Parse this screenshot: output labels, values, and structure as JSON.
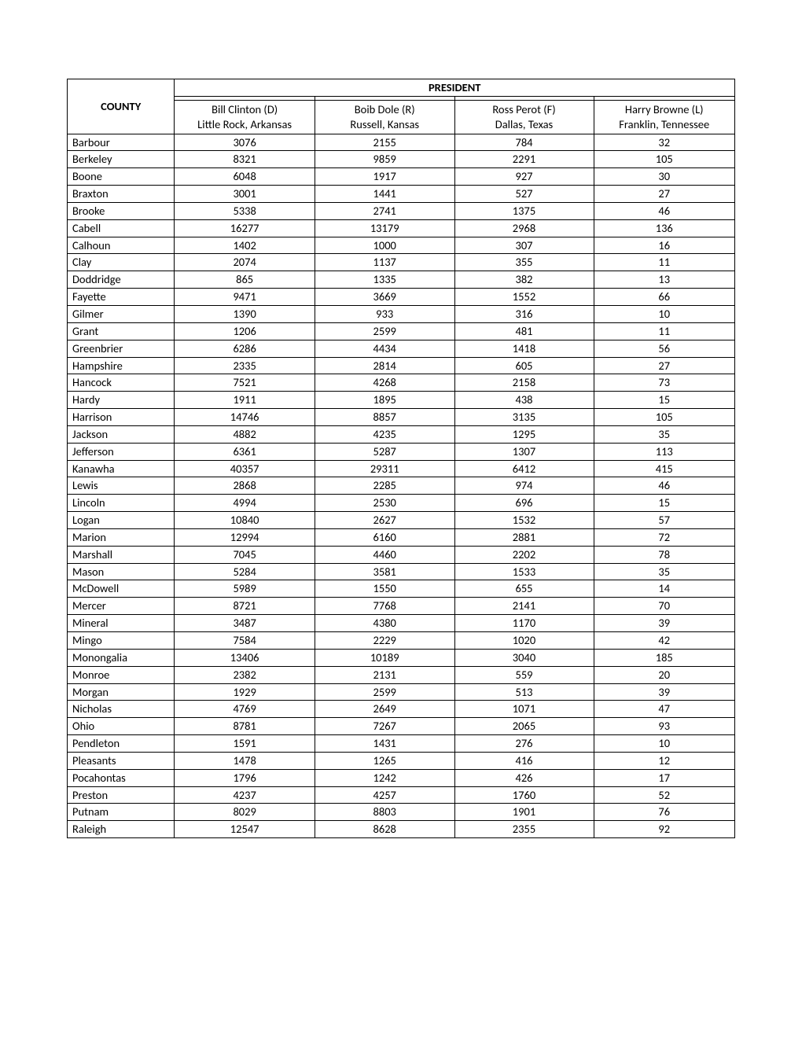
{
  "header": {
    "county_label": "COUNTY",
    "president_label": "PRESIDENT",
    "candidates": [
      {
        "name": "Bill Clinton (D)",
        "origin": "Little Rock, Arkansas"
      },
      {
        "name": "Boib Dole (R)",
        "origin": "Russell, Kansas"
      },
      {
        "name": "Ross Perot (F)",
        "origin": "Dallas, Texas"
      },
      {
        "name": "Harry Browne (L)",
        "origin": "Franklin, Tennessee"
      }
    ]
  },
  "rows": [
    {
      "county": "Barbour",
      "v": [
        "3076",
        "2155",
        "784",
        "32"
      ]
    },
    {
      "county": "Berkeley",
      "v": [
        "8321",
        "9859",
        "2291",
        "105"
      ]
    },
    {
      "county": "Boone",
      "v": [
        "6048",
        "1917",
        "927",
        "30"
      ]
    },
    {
      "county": "Braxton",
      "v": [
        "3001",
        "1441",
        "527",
        "27"
      ]
    },
    {
      "county": "Brooke",
      "v": [
        "5338",
        "2741",
        "1375",
        "46"
      ]
    },
    {
      "county": "Cabell",
      "v": [
        "16277",
        "13179",
        "2968",
        "136"
      ]
    },
    {
      "county": "Calhoun",
      "v": [
        "1402",
        "1000",
        "307",
        "16"
      ]
    },
    {
      "county": "Clay",
      "v": [
        "2074",
        "1137",
        "355",
        "11"
      ]
    },
    {
      "county": "Doddridge",
      "v": [
        "865",
        "1335",
        "382",
        "13"
      ]
    },
    {
      "county": "Fayette",
      "v": [
        "9471",
        "3669",
        "1552",
        "66"
      ]
    },
    {
      "county": "Gilmer",
      "v": [
        "1390",
        "933",
        "316",
        "10"
      ]
    },
    {
      "county": "Grant",
      "v": [
        "1206",
        "2599",
        "481",
        "11"
      ]
    },
    {
      "county": "Greenbrier",
      "v": [
        "6286",
        "4434",
        "1418",
        "56"
      ]
    },
    {
      "county": "Hampshire",
      "v": [
        "2335",
        "2814",
        "605",
        "27"
      ]
    },
    {
      "county": "Hancock",
      "v": [
        "7521",
        "4268",
        "2158",
        "73"
      ]
    },
    {
      "county": "Hardy",
      "v": [
        "1911",
        "1895",
        "438",
        "15"
      ]
    },
    {
      "county": "Harrison",
      "v": [
        "14746",
        "8857",
        "3135",
        "105"
      ]
    },
    {
      "county": "Jackson",
      "v": [
        "4882",
        "4235",
        "1295",
        "35"
      ]
    },
    {
      "county": "Jefferson",
      "v": [
        "6361",
        "5287",
        "1307",
        "113"
      ]
    },
    {
      "county": "Kanawha",
      "v": [
        "40357",
        "29311",
        "6412",
        "415"
      ]
    },
    {
      "county": "Lewis",
      "v": [
        "2868",
        "2285",
        "974",
        "46"
      ]
    },
    {
      "county": "Lincoln",
      "v": [
        "4994",
        "2530",
        "696",
        "15"
      ]
    },
    {
      "county": "Logan",
      "v": [
        "10840",
        "2627",
        "1532",
        "57"
      ]
    },
    {
      "county": "Marion",
      "v": [
        "12994",
        "6160",
        "2881",
        "72"
      ]
    },
    {
      "county": "Marshall",
      "v": [
        "7045",
        "4460",
        "2202",
        "78"
      ]
    },
    {
      "county": "Mason",
      "v": [
        "5284",
        "3581",
        "1533",
        "35"
      ]
    },
    {
      "county": "McDowell",
      "v": [
        "5989",
        "1550",
        "655",
        "14"
      ]
    },
    {
      "county": "Mercer",
      "v": [
        "8721",
        "7768",
        "2141",
        "70"
      ]
    },
    {
      "county": "Mineral",
      "v": [
        "3487",
        "4380",
        "1170",
        "39"
      ]
    },
    {
      "county": "Mingo",
      "v": [
        "7584",
        "2229",
        "1020",
        "42"
      ]
    },
    {
      "county": "Monongalia",
      "v": [
        "13406",
        "10189",
        "3040",
        "185"
      ]
    },
    {
      "county": "Monroe",
      "v": [
        "2382",
        "2131",
        "559",
        "20"
      ]
    },
    {
      "county": "Morgan",
      "v": [
        "1929",
        "2599",
        "513",
        "39"
      ]
    },
    {
      "county": "Nicholas",
      "v": [
        "4769",
        "2649",
        "1071",
        "47"
      ]
    },
    {
      "county": "Ohio",
      "v": [
        "8781",
        "7267",
        "2065",
        "93"
      ]
    },
    {
      "county": "Pendleton",
      "v": [
        "1591",
        "1431",
        "276",
        "10"
      ]
    },
    {
      "county": "Pleasants",
      "v": [
        "1478",
        "1265",
        "416",
        "12"
      ]
    },
    {
      "county": "Pocahontas",
      "v": [
        "1796",
        "1242",
        "426",
        "17"
      ]
    },
    {
      "county": "Preston",
      "v": [
        "4237",
        "4257",
        "1760",
        "52"
      ]
    },
    {
      "county": "Putnam",
      "v": [
        "8029",
        "8803",
        "1901",
        "76"
      ]
    },
    {
      "county": "Raleigh",
      "v": [
        "12547",
        "8628",
        "2355",
        "92"
      ]
    }
  ],
  "style": {
    "font_family": "Calibri, Arial, sans-serif",
    "font_size_pt": 11,
    "text_color": "#000000",
    "border_color": "#000000",
    "background_color": "#ffffff"
  }
}
